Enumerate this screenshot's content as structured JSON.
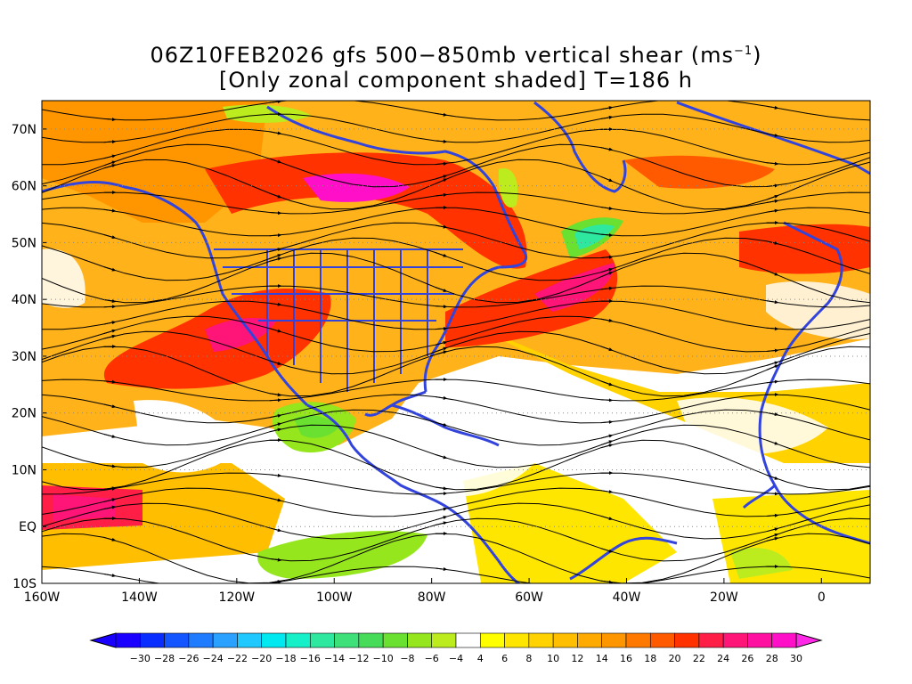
{
  "title": {
    "line1_prefix": "06Z10FEB2026 gfs 500−850mb vertical shear (ms",
    "line1_sup": "−1",
    "line1_suffix": ")",
    "line2": "[Only zonal component shaded] T=186 h"
  },
  "map": {
    "lon_range": [
      -160,
      10
    ],
    "lat_range": [
      -10,
      75
    ],
    "lon_ticks": [
      "160W",
      "140W",
      "120W",
      "100W",
      "80W",
      "60W",
      "40W",
      "20W",
      "0"
    ],
    "lon_tick_values": [
      -160,
      -140,
      -120,
      -100,
      -80,
      -60,
      -40,
      -20,
      0
    ],
    "lat_ticks": [
      "70N",
      "60N",
      "50N",
      "40N",
      "30N",
      "20N",
      "10N",
      "EQ",
      "10S"
    ],
    "lat_tick_values": [
      70,
      60,
      50,
      40,
      30,
      20,
      10,
      0,
      -10
    ],
    "field": "zonal vertical shear 500-850mb",
    "coastline_color": "#3344dd",
    "streamline_color": "#000000"
  },
  "colorbar": {
    "labels": [
      "−30",
      "−28",
      "−26",
      "−24",
      "−22",
      "−20",
      "−18",
      "−16",
      "−14",
      "−12",
      "−10",
      "−8",
      "−6",
      "−4",
      "4",
      "6",
      "8",
      "10",
      "12",
      "14",
      "16",
      "18",
      "20",
      "22",
      "24",
      "26",
      "28",
      "30"
    ],
    "colors": [
      "#1a00ff",
      "#0a2dff",
      "#1355ff",
      "#1f7cff",
      "#2aa0ff",
      "#1fc8ff",
      "#00e8f0",
      "#16f0c8",
      "#2ee8a0",
      "#3ee07a",
      "#46dc5a",
      "#6ae030",
      "#96e61e",
      "#bdec1e",
      "#ffffff",
      "#ffff00",
      "#ffe600",
      "#ffd200",
      "#ffbe00",
      "#ffaa00",
      "#ff9600",
      "#ff7800",
      "#ff5a00",
      "#ff3200",
      "#ff1e46",
      "#ff1478",
      "#ff10a0",
      "#ff10c8",
      "#ff28e6"
    ]
  }
}
